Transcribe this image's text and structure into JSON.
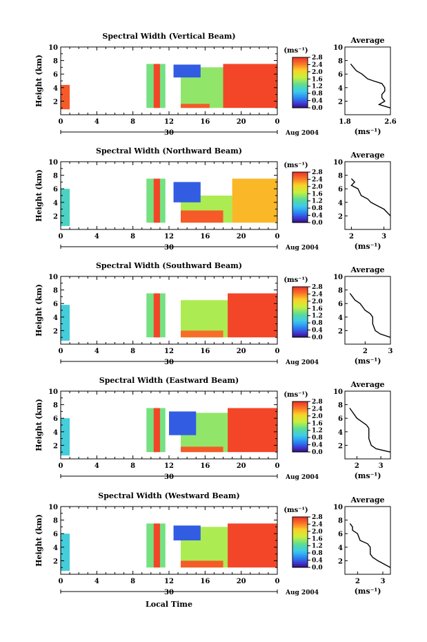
{
  "figure": {
    "xlabel_bottom": "Local Time",
    "units_label": "(ms⁻¹)",
    "date_label": "Aug 2004",
    "day_label": "30",
    "average_title": "Average",
    "average_xlabel": "(ms⁻¹)",
    "ylabel": "Height (km)"
  },
  "chart_data": [
    {
      "type": "heatmap",
      "title": "Spectral Width (Vertical Beam)",
      "xlabel": "",
      "ylabel": "Height (km)",
      "x_ticks": [
        "0",
        "4",
        "8",
        "12",
        "16",
        "20",
        "0"
      ],
      "xlim": [
        0,
        24
      ],
      "ylim": [
        0,
        10
      ],
      "y_ticks": [
        "2",
        "4",
        "6",
        "8",
        "10"
      ],
      "colorbar": {
        "label": "(ms⁻¹)",
        "range": [
          0,
          2.8
        ],
        "ticks": [
          "2.8",
          "2.4",
          "2.0",
          "1.6",
          "1.2",
          "0.8",
          "0.4",
          "0.0"
        ]
      },
      "data_blocks": [
        {
          "t0": 0,
          "t1": 1,
          "h0": 0.8,
          "h1": 4.4,
          "level": 2.6
        },
        {
          "t0": 9.5,
          "t1": 11.6,
          "h0": 1.0,
          "h1": 7.5,
          "level": 1.4
        },
        {
          "t0": 10.3,
          "t1": 11.0,
          "h0": 1.0,
          "h1": 7.5,
          "level": 2.7
        },
        {
          "t0": 13.3,
          "t1": 18.0,
          "h0": 1.0,
          "h1": 7.0,
          "level": 1.5
        },
        {
          "t0": 13.3,
          "t1": 16.5,
          "h0": 1.0,
          "h1": 1.6,
          "level": 2.6
        },
        {
          "t0": 18.0,
          "t1": 24.0,
          "h0": 1.0,
          "h1": 7.5,
          "level": 2.7
        },
        {
          "t0": 12.5,
          "t1": 15.5,
          "h0": 5.5,
          "h1": 7.4,
          "level": 0.4
        }
      ],
      "average": {
        "xlim": [
          1.8,
          2.6
        ],
        "x_ticks": [
          "1.8",
          "2.6"
        ],
        "ylim": [
          0,
          10
        ],
        "y_ticks": [
          "2",
          "4",
          "6",
          "8",
          "10"
        ],
        "profile": [
          [
            1.9,
            7.5
          ],
          [
            1.95,
            7.0
          ],
          [
            2.0,
            6.5
          ],
          [
            2.1,
            6.0
          ],
          [
            2.2,
            5.3
          ],
          [
            2.3,
            5.0
          ],
          [
            2.45,
            4.6
          ],
          [
            2.5,
            4.0
          ],
          [
            2.5,
            3.5
          ],
          [
            2.45,
            3.0
          ],
          [
            2.45,
            2.5
          ],
          [
            2.5,
            2.0
          ],
          [
            2.4,
            1.5
          ],
          [
            2.6,
            1.0
          ]
        ]
      }
    },
    {
      "type": "heatmap",
      "title": "Spectral Width (Northward Beam)",
      "xlabel": "",
      "ylabel": "Height (km)",
      "x_ticks": [
        "0",
        "4",
        "8",
        "12",
        "16",
        "20",
        "0"
      ],
      "xlim": [
        0,
        24
      ],
      "ylim": [
        0,
        10
      ],
      "y_ticks": [
        "2",
        "4",
        "6",
        "8",
        "10"
      ],
      "colorbar": {
        "label": "(ms⁻¹)",
        "range": [
          0,
          2.8
        ],
        "ticks": [
          "2.8",
          "2.4",
          "2.0",
          "1.6",
          "1.2",
          "0.8",
          "0.4",
          "0.0"
        ]
      },
      "data_blocks": [
        {
          "t0": 0,
          "t1": 1,
          "h0": 0.5,
          "h1": 6.0,
          "level": 1.1
        },
        {
          "t0": 9.5,
          "t1": 11.6,
          "h0": 1.0,
          "h1": 7.5,
          "level": 1.4
        },
        {
          "t0": 10.3,
          "t1": 11.0,
          "h0": 1.0,
          "h1": 7.5,
          "level": 2.7
        },
        {
          "t0": 13.3,
          "t1": 19.0,
          "h0": 1.0,
          "h1": 5.0,
          "level": 1.6
        },
        {
          "t0": 13.3,
          "t1": 18.0,
          "h0": 1.0,
          "h1": 2.8,
          "level": 2.6
        },
        {
          "t0": 19.0,
          "t1": 24.0,
          "h0": 1.0,
          "h1": 7.5,
          "level": 2.2
        },
        {
          "t0": 12.5,
          "t1": 15.5,
          "h0": 4.0,
          "h1": 7.0,
          "level": 0.4
        }
      ],
      "average": {
        "xlim": [
          1.8,
          3.2
        ],
        "x_ticks": [
          "2",
          "3"
        ],
        "ylim": [
          0,
          10
        ],
        "y_ticks": [
          "2",
          "4",
          "6",
          "8",
          "10"
        ],
        "profile": [
          [
            2.0,
            7.5
          ],
          [
            2.1,
            7.0
          ],
          [
            2.0,
            6.5
          ],
          [
            2.2,
            6.0
          ],
          [
            2.3,
            5.0
          ],
          [
            2.5,
            4.5
          ],
          [
            2.6,
            4.0
          ],
          [
            2.8,
            3.5
          ],
          [
            3.0,
            3.0
          ],
          [
            3.1,
            2.5
          ],
          [
            3.2,
            2.0
          ]
        ]
      }
    },
    {
      "type": "heatmap",
      "title": "Spectral Width (Southward Beam)",
      "xlabel": "",
      "ylabel": "Height (km)",
      "x_ticks": [
        "0",
        "4",
        "8",
        "12",
        "16",
        "20",
        "0"
      ],
      "xlim": [
        0,
        24
      ],
      "ylim": [
        0,
        10
      ],
      "y_ticks": [
        "2",
        "4",
        "6",
        "8",
        "10"
      ],
      "colorbar": {
        "label": "(ms⁻¹)",
        "range": [
          0,
          2.8
        ],
        "ticks": [
          "2.8",
          "2.4",
          "2.0",
          "1.6",
          "1.2",
          "0.8",
          "0.4",
          "0.0"
        ]
      },
      "data_blocks": [
        {
          "t0": 0,
          "t1": 1,
          "h0": 0.5,
          "h1": 5.8,
          "level": 1.0
        },
        {
          "t0": 9.5,
          "t1": 11.6,
          "h0": 1.0,
          "h1": 7.5,
          "level": 1.4
        },
        {
          "t0": 10.3,
          "t1": 11.0,
          "h0": 1.0,
          "h1": 7.5,
          "level": 2.7
        },
        {
          "t0": 13.3,
          "t1": 18.5,
          "h0": 1.0,
          "h1": 6.5,
          "level": 1.6
        },
        {
          "t0": 13.3,
          "t1": 18.0,
          "h0": 1.0,
          "h1": 2.0,
          "level": 2.5
        },
        {
          "t0": 18.5,
          "t1": 24.0,
          "h0": 1.0,
          "h1": 7.5,
          "level": 2.7
        }
      ],
      "average": {
        "xlim": [
          1.2,
          3.0
        ],
        "x_ticks": [
          "2",
          "3"
        ],
        "ylim": [
          0,
          10
        ],
        "y_ticks": [
          "2",
          "4",
          "6",
          "8",
          "10"
        ],
        "profile": [
          [
            1.4,
            7.5
          ],
          [
            1.5,
            7.0
          ],
          [
            1.6,
            6.5
          ],
          [
            1.8,
            6.0
          ],
          [
            2.0,
            5.0
          ],
          [
            2.2,
            4.5
          ],
          [
            2.3,
            4.0
          ],
          [
            2.3,
            3.0
          ],
          [
            2.4,
            2.0
          ],
          [
            2.6,
            1.5
          ],
          [
            3.0,
            1.0
          ]
        ]
      }
    },
    {
      "type": "heatmap",
      "title": "Spectral Width (Eastward Beam)",
      "xlabel": "",
      "ylabel": "Height (km)",
      "x_ticks": [
        "0",
        "4",
        "8",
        "12",
        "16",
        "20",
        "0"
      ],
      "xlim": [
        0,
        24
      ],
      "ylim": [
        0,
        10
      ],
      "y_ticks": [
        "2",
        "4",
        "6",
        "8",
        "10"
      ],
      "colorbar": {
        "label": "(ms⁻¹)",
        "range": [
          0,
          2.8
        ],
        "ticks": [
          "2.8",
          "2.4",
          "2.0",
          "1.6",
          "1.2",
          "0.8",
          "0.4",
          "0.0"
        ]
      },
      "data_blocks": [
        {
          "t0": 0,
          "t1": 1,
          "h0": 0.5,
          "h1": 6.0,
          "level": 1.0
        },
        {
          "t0": 9.5,
          "t1": 11.6,
          "h0": 1.0,
          "h1": 7.5,
          "level": 1.4
        },
        {
          "t0": 10.3,
          "t1": 11.0,
          "h0": 1.0,
          "h1": 7.5,
          "level": 2.7
        },
        {
          "t0": 13.3,
          "t1": 18.5,
          "h0": 1.0,
          "h1": 6.8,
          "level": 1.5
        },
        {
          "t0": 13.3,
          "t1": 18.0,
          "h0": 1.0,
          "h1": 1.8,
          "level": 2.6
        },
        {
          "t0": 18.5,
          "t1": 24.0,
          "h0": 1.0,
          "h1": 7.5,
          "level": 2.7
        },
        {
          "t0": 12.0,
          "t1": 15.0,
          "h0": 3.5,
          "h1": 7.0,
          "level": 0.4
        }
      ],
      "average": {
        "xlim": [
          1.5,
          3.4
        ],
        "x_ticks": [
          "2",
          "3"
        ],
        "ylim": [
          0,
          10
        ],
        "y_ticks": [
          "2",
          "4",
          "6",
          "8",
          "10"
        ],
        "profile": [
          [
            1.7,
            7.5
          ],
          [
            1.8,
            7.0
          ],
          [
            1.9,
            6.5
          ],
          [
            2.0,
            6.0
          ],
          [
            2.2,
            5.5
          ],
          [
            2.4,
            5.0
          ],
          [
            2.5,
            4.5
          ],
          [
            2.5,
            3.0
          ],
          [
            2.6,
            2.0
          ],
          [
            2.8,
            1.5
          ],
          [
            3.4,
            1.0
          ]
        ]
      }
    },
    {
      "type": "heatmap",
      "title": "Spectral Width (Westward Beam)",
      "xlabel": "Local Time",
      "ylabel": "Height (km)",
      "x_ticks": [
        "0",
        "4",
        "8",
        "12",
        "16",
        "20",
        "0"
      ],
      "xlim": [
        0,
        24
      ],
      "ylim": [
        0,
        10
      ],
      "y_ticks": [
        "2",
        "4",
        "6",
        "8",
        "10"
      ],
      "colorbar": {
        "label": "(ms⁻¹)",
        "range": [
          0,
          2.8
        ],
        "ticks": [
          "2.8",
          "2.4",
          "2.0",
          "1.6",
          "1.2",
          "0.8",
          "0.4",
          "0.0"
        ]
      },
      "data_blocks": [
        {
          "t0": 0,
          "t1": 1,
          "h0": 0.5,
          "h1": 6.0,
          "level": 1.0
        },
        {
          "t0": 9.5,
          "t1": 11.6,
          "h0": 1.0,
          "h1": 7.5,
          "level": 1.4
        },
        {
          "t0": 10.3,
          "t1": 11.0,
          "h0": 1.0,
          "h1": 7.5,
          "level": 2.7
        },
        {
          "t0": 13.3,
          "t1": 18.5,
          "h0": 1.0,
          "h1": 7.0,
          "level": 1.6
        },
        {
          "t0": 13.3,
          "t1": 18.0,
          "h0": 1.0,
          "h1": 2.0,
          "level": 2.6
        },
        {
          "t0": 18.5,
          "t1": 24.0,
          "h0": 1.0,
          "h1": 7.5,
          "level": 2.7
        },
        {
          "t0": 12.5,
          "t1": 15.5,
          "h0": 5.0,
          "h1": 7.2,
          "level": 0.4
        }
      ],
      "average": {
        "xlim": [
          1.5,
          3.3
        ],
        "x_ticks": [
          "2",
          "3"
        ],
        "ylim": [
          0,
          10
        ],
        "y_ticks": [
          "2",
          "4",
          "6",
          "8",
          "10"
        ],
        "profile": [
          [
            1.7,
            7.5
          ],
          [
            1.8,
            7.0
          ],
          [
            1.8,
            6.5
          ],
          [
            2.0,
            6.0
          ],
          [
            2.1,
            5.0
          ],
          [
            2.4,
            4.5
          ],
          [
            2.5,
            4.0
          ],
          [
            2.5,
            3.0
          ],
          [
            2.6,
            2.5
          ],
          [
            2.8,
            2.0
          ],
          [
            3.3,
            1.0
          ]
        ]
      }
    }
  ]
}
